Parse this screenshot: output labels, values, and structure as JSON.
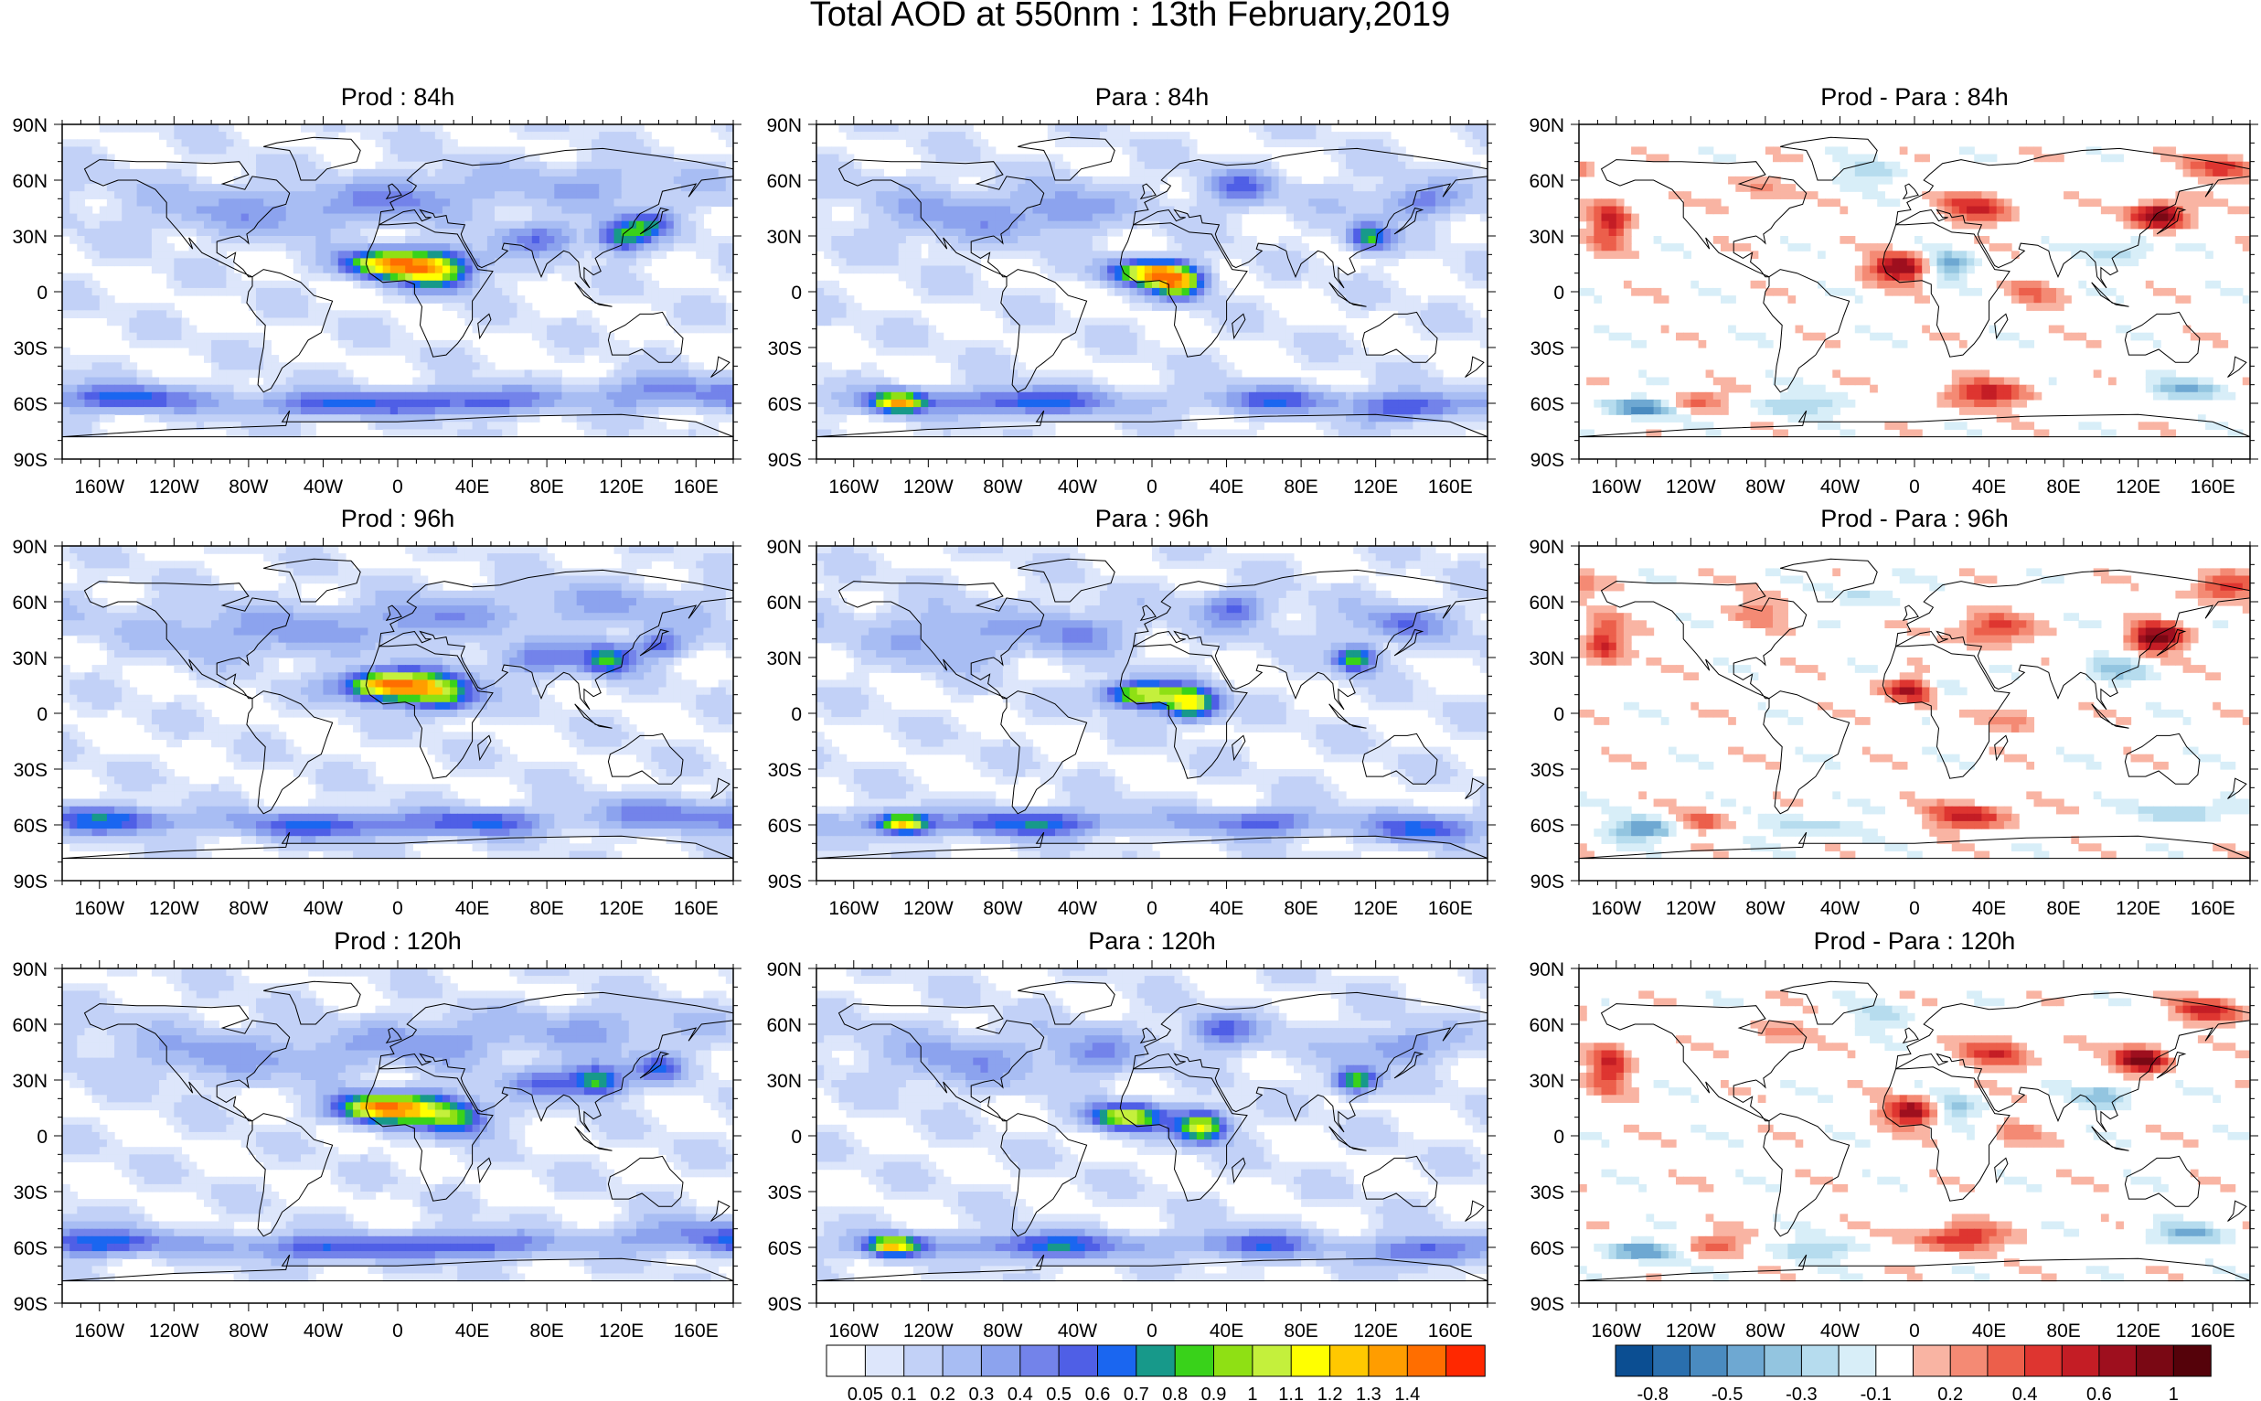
{
  "title": "Total AOD at 550nm : 13th February,2019",
  "panels": [
    {
      "title": "Prod : 84h",
      "kind": "aod",
      "variant": 0
    },
    {
      "title": "Para : 84h",
      "kind": "aod",
      "variant": 1
    },
    {
      "title": "Prod - Para : 84h",
      "kind": "diff",
      "variant": 2
    },
    {
      "title": "Prod : 96h",
      "kind": "aod",
      "variant": 3
    },
    {
      "title": "Para : 96h",
      "kind": "aod",
      "variant": 4
    },
    {
      "title": "Prod - Para : 96h",
      "kind": "diff",
      "variant": 5
    },
    {
      "title": "Prod : 120h",
      "kind": "aod",
      "variant": 6
    },
    {
      "title": "Para : 120h",
      "kind": "aod",
      "variant": 7
    },
    {
      "title": "Prod - Para : 120h",
      "kind": "diff",
      "variant": 8
    }
  ],
  "lat_labels": [
    "90N",
    "60N",
    "30N",
    "0",
    "30S",
    "60S",
    "90S"
  ],
  "lon_labels": [
    "160W",
    "120W",
    "80W",
    "40W",
    "0",
    "40E",
    "80E",
    "120E",
    "160E"
  ],
  "colorbar_aod": {
    "labels": [
      "0.05",
      "0.1",
      "0.2",
      "0.3",
      "0.4",
      "0.5",
      "0.6",
      "0.7",
      "0.8",
      "0.9",
      "1",
      "1.1",
      "1.2",
      "1.3",
      "1.4"
    ],
    "colors": [
      "#ffffff",
      "#dde6fb",
      "#c2d1f7",
      "#a8bdf3",
      "#8ca3ee",
      "#7383ea",
      "#4f5fe6",
      "#1a66f0",
      "#17998a",
      "#39d21a",
      "#8fe014",
      "#c4f03c",
      "#ffff00",
      "#ffc800",
      "#ff9d00",
      "#ff6e00",
      "#ff2800"
    ]
  },
  "colorbar_diff": {
    "labels": [
      "-0.8",
      "-0.5",
      "-0.3",
      "-0.1",
      "0.2",
      "0.4",
      "0.6",
      "1"
    ],
    "colors": [
      "#0b4e92",
      "#2a6fae",
      "#4a8bc0",
      "#6ea8d2",
      "#93c5e0",
      "#b6dcee",
      "#d8eef8",
      "#ffffff",
      "#f9b4a3",
      "#f48a74",
      "#ec5f4b",
      "#de3530",
      "#c41d25",
      "#9e0f1e",
      "#7a0814",
      "#55020a"
    ]
  }
}
